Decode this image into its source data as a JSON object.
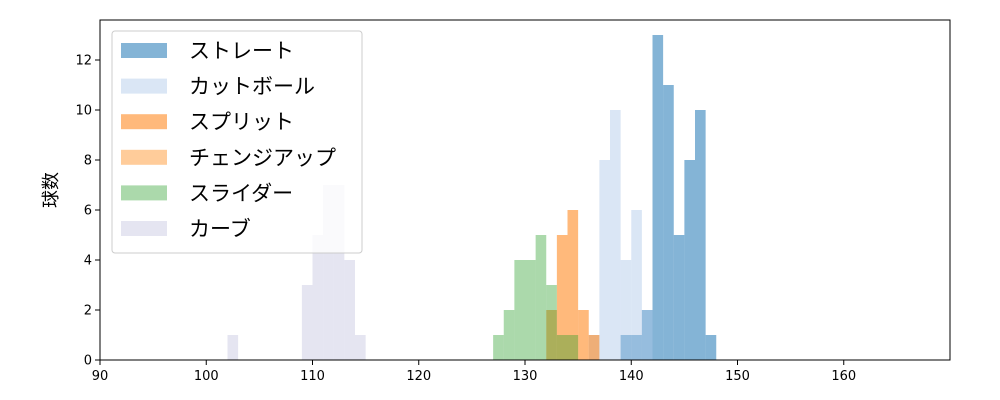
{
  "chart_data": {
    "type": "bar",
    "subtype": "histogram",
    "bin_width": 1,
    "xlim": [
      90,
      170
    ],
    "ylim": [
      0,
      13.6
    ],
    "xticks": [
      90,
      100,
      110,
      120,
      130,
      140,
      150,
      160
    ],
    "yticks": [
      0,
      2,
      4,
      6,
      8,
      10,
      12
    ],
    "xlabel": "",
    "ylabel": "球数",
    "title": "",
    "grid": false,
    "legend_position": "upper-left",
    "series": [
      {
        "name": "ストレート",
        "color": "#1f77b4",
        "opacity": 0.55,
        "bins": [
          [
            139,
            1
          ],
          [
            140,
            1
          ],
          [
            141,
            2
          ],
          [
            142,
            13
          ],
          [
            143,
            11
          ],
          [
            144,
            5
          ],
          [
            145,
            8
          ],
          [
            146,
            10
          ],
          [
            147,
            1
          ]
        ]
      },
      {
        "name": "カットボール",
        "color": "#aec7e8",
        "opacity": 0.45,
        "bins": [
          [
            136,
            1
          ],
          [
            137,
            8
          ],
          [
            138,
            10
          ],
          [
            139,
            4
          ],
          [
            140,
            6
          ],
          [
            141,
            2
          ]
        ]
      },
      {
        "name": "スプリット",
        "color": "#ff7f0e",
        "opacity": 0.55,
        "bins": [
          [
            132,
            2
          ],
          [
            133,
            5
          ],
          [
            134,
            6
          ],
          [
            135,
            2
          ],
          [
            136,
            1
          ]
        ]
      },
      {
        "name": "チェンジアップ",
        "color": "#ffbb78",
        "opacity": 0.75,
        "bins": [
          [
            133,
            1
          ],
          [
            134,
            1
          ]
        ]
      },
      {
        "name": "スライダー",
        "color": "#2ca02c",
        "opacity": 0.4,
        "bins": [
          [
            127,
            1
          ],
          [
            128,
            2
          ],
          [
            129,
            4
          ],
          [
            130,
            4
          ],
          [
            131,
            5
          ],
          [
            132,
            3
          ],
          [
            133,
            1
          ],
          [
            134,
            1
          ]
        ]
      },
      {
        "name": "カーブ",
        "color": "#c5c5e0",
        "opacity": 0.45,
        "bins": [
          [
            102,
            1
          ],
          [
            109,
            3
          ],
          [
            110,
            5
          ],
          [
            111,
            7
          ],
          [
            112,
            7
          ],
          [
            113,
            4
          ],
          [
            114,
            1
          ]
        ]
      }
    ]
  }
}
